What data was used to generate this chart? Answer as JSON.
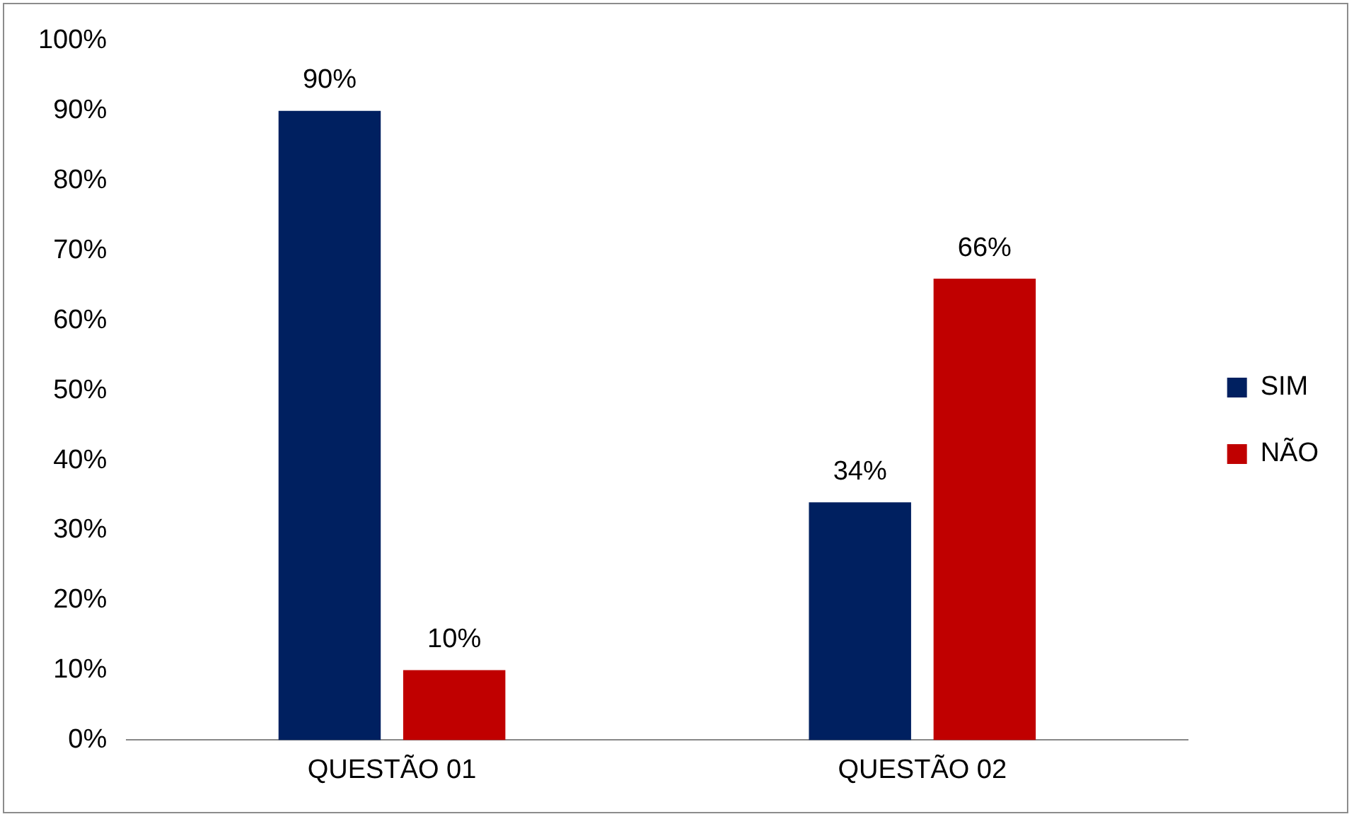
{
  "chart_data": {
    "type": "bar",
    "categories": [
      "QUESTÃO 01",
      "QUESTÃO 02"
    ],
    "series": [
      {
        "name": "SIM",
        "color": "#002060",
        "values": [
          90,
          34
        ],
        "value_labels": [
          "90%",
          "34%"
        ]
      },
      {
        "name": "NÃO",
        "color": "#c00000",
        "values": [
          10,
          66
        ],
        "value_labels": [
          "10%",
          "66%"
        ]
      }
    ],
    "ylim": [
      0,
      100
    ],
    "yticks": [
      {
        "value": 0,
        "label": "0%"
      },
      {
        "value": 10,
        "label": "10%"
      },
      {
        "value": 20,
        "label": "20%"
      },
      {
        "value": 30,
        "label": "30%"
      },
      {
        "value": 40,
        "label": "40%"
      },
      {
        "value": 50,
        "label": "50%"
      },
      {
        "value": 60,
        "label": "60%"
      },
      {
        "value": 70,
        "label": "70%"
      },
      {
        "value": 80,
        "label": "80%"
      },
      {
        "value": 90,
        "label": "90%"
      },
      {
        "value": 100,
        "label": "100%"
      }
    ],
    "grid": false,
    "legend": "right"
  }
}
